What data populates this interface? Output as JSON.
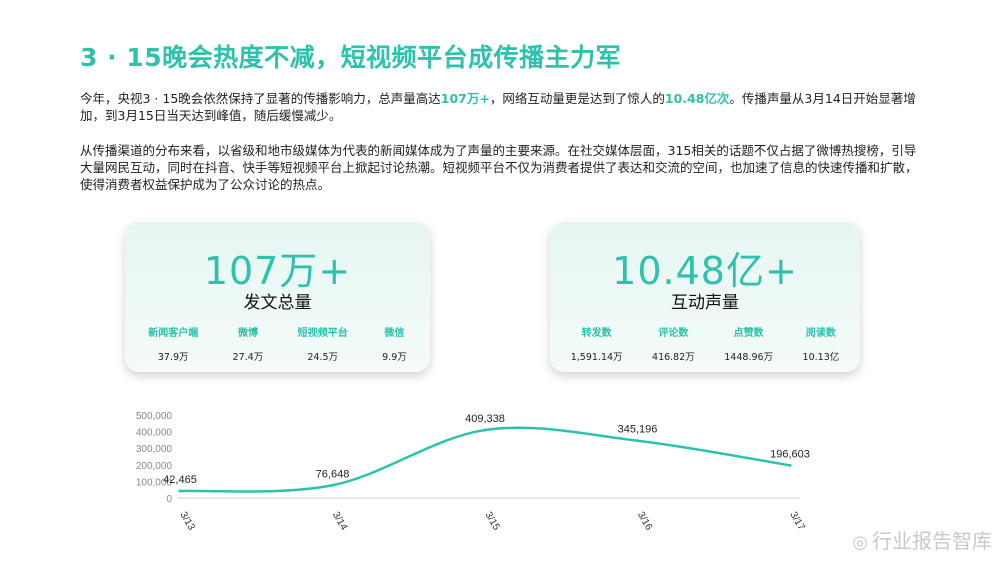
{
  "title": "3 · 15晚会热度不减，短视频平台成传播主力军",
  "paragraph1": {
    "parts": [
      "今年，央视3 · 15晚会依然保持了显著的传播影响力，总声量高达",
      "107万+",
      "，网络互动量更是达到了惊人的",
      "10.48亿次",
      "。传播声量从3月14日开始显著增加，到3月15日当天达到峰值，随后缓慢减少。"
    ]
  },
  "paragraph2": "从传播渠道的分布来看，以省级和地市级媒体为代表的新闻媒体成为了声量的主要来源。在社交媒体层面，315相关的话题不仅占据了微博热搜榜，引导大量网民互动，同时在抖音、快手等短视频平台上掀起讨论热潮。短视频平台不仅为消费者提供了表达和交流的空间，也加速了信息的快速传播和扩散，使得消费者权益保护成为了公众讨论的热点。",
  "card1": {
    "big": "107万+",
    "sub": "发文总量",
    "stats": [
      {
        "label": "新闻客户端",
        "value": "37.9万"
      },
      {
        "label": "微博",
        "value": "27.4万"
      },
      {
        "label": "短视频平台",
        "value": "24.5万"
      },
      {
        "label": "微信",
        "value": "9.9万"
      }
    ]
  },
  "card2": {
    "big": "10.48亿+",
    "sub": "互动声量",
    "stats": [
      {
        "label": "转发数",
        "value": "1,591.14万"
      },
      {
        "label": "评论数",
        "value": "416.82万"
      },
      {
        "label": "点赞数",
        "value": "1448.96万"
      },
      {
        "label": "阅读数",
        "value": "10.13亿"
      }
    ]
  },
  "chart_data": {
    "type": "line",
    "categories": [
      "3/13",
      "3/14",
      "3/15",
      "3/16",
      "3/17"
    ],
    "values": [
      42465,
      76648,
      409338,
      345196,
      196603
    ],
    "data_labels": [
      "42,465",
      "76,648",
      "409,338",
      "345,196",
      "196,603"
    ],
    "yticks": [
      "500,000",
      "400,000",
      "300,000",
      "200,000",
      "100,000",
      "0"
    ],
    "ylim": [
      0,
      500000
    ],
    "color": "#2cc2ac",
    "grid": false,
    "legend": "none"
  },
  "watermark": "行业报告智库"
}
